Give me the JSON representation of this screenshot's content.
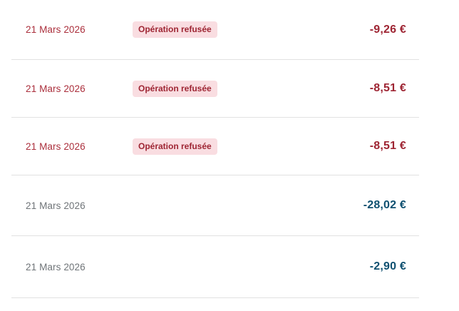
{
  "transactions": {
    "rows": [
      {
        "date": "21 Mars 2026",
        "status_badge": "Opération refusée",
        "amount": "-9,26 €",
        "type": "refused"
      },
      {
        "date": "21 Mars 2026",
        "status_badge": "Opération refusée",
        "amount": "-8,51 €",
        "type": "refused"
      },
      {
        "date": "21 Mars 2026",
        "status_badge": "Opération refusée",
        "amount": "-8,51 €",
        "type": "refused"
      },
      {
        "date": "21 Mars 2026",
        "amount": "-28,02 €",
        "type": "debit"
      },
      {
        "date": "21 Mars 2026",
        "amount": "-2,90 €",
        "type": "debit"
      }
    ]
  },
  "colors": {
    "refused_date_text": "#ab2f3c",
    "refused_amount_text": "#9e2533",
    "badge_background": "#f9dde1",
    "badge_text": "#9e2533",
    "debit_amount_text": "#0f5070",
    "default_date_text": "#6f7478",
    "divider": "#e1e1e1",
    "background": "#ffffff"
  }
}
